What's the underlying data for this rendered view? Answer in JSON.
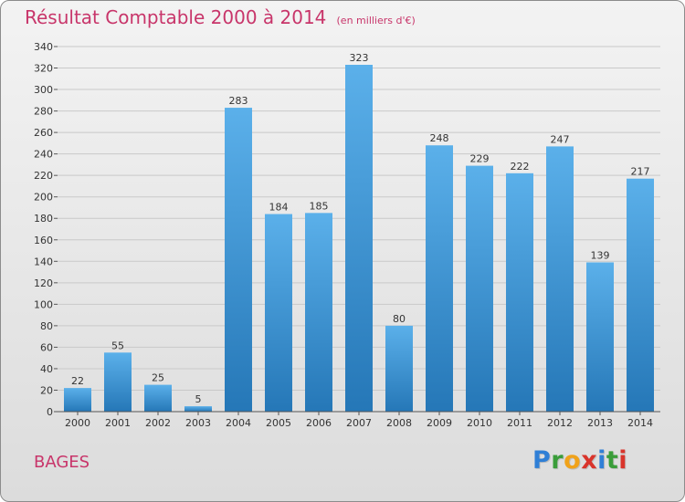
{
  "header": {
    "title": "Résultat Comptable 2000 à 2014",
    "subtitle": "(en milliers d'€)"
  },
  "footer": {
    "place": "BAGES",
    "logo": {
      "text": "Proxiti",
      "letters": [
        "P",
        "r",
        "o",
        "x",
        "i",
        "t",
        "i"
      ],
      "colors": [
        "#2f7fd6",
        "#3a9d3a",
        "#f0a21a",
        "#d9342b",
        "#2f7fd6",
        "#3a9d3a",
        "#d9342b"
      ]
    }
  },
  "colors": {
    "title": "#c8356a",
    "bar_top": "#5bb0ea",
    "bar_bottom": "#2577b7",
    "grid": "#c9c9c9"
  },
  "chart_data": {
    "type": "bar",
    "title": "Résultat Comptable 2000 à 2014",
    "subtitle": "(en milliers d'€)",
    "xlabel": "",
    "ylabel": "",
    "categories": [
      "2000",
      "2001",
      "2002",
      "2003",
      "2004",
      "2005",
      "2006",
      "2007",
      "2008",
      "2009",
      "2010",
      "2011",
      "2012",
      "2013",
      "2014"
    ],
    "values": [
      22,
      55,
      25,
      5,
      283,
      184,
      185,
      323,
      80,
      248,
      229,
      222,
      247,
      139,
      217
    ],
    "ylim": [
      0,
      340
    ],
    "yticks": [
      0,
      20,
      40,
      60,
      80,
      100,
      120,
      140,
      160,
      180,
      200,
      220,
      240,
      260,
      280,
      300,
      320,
      340
    ],
    "grid": true,
    "legend": "none"
  }
}
